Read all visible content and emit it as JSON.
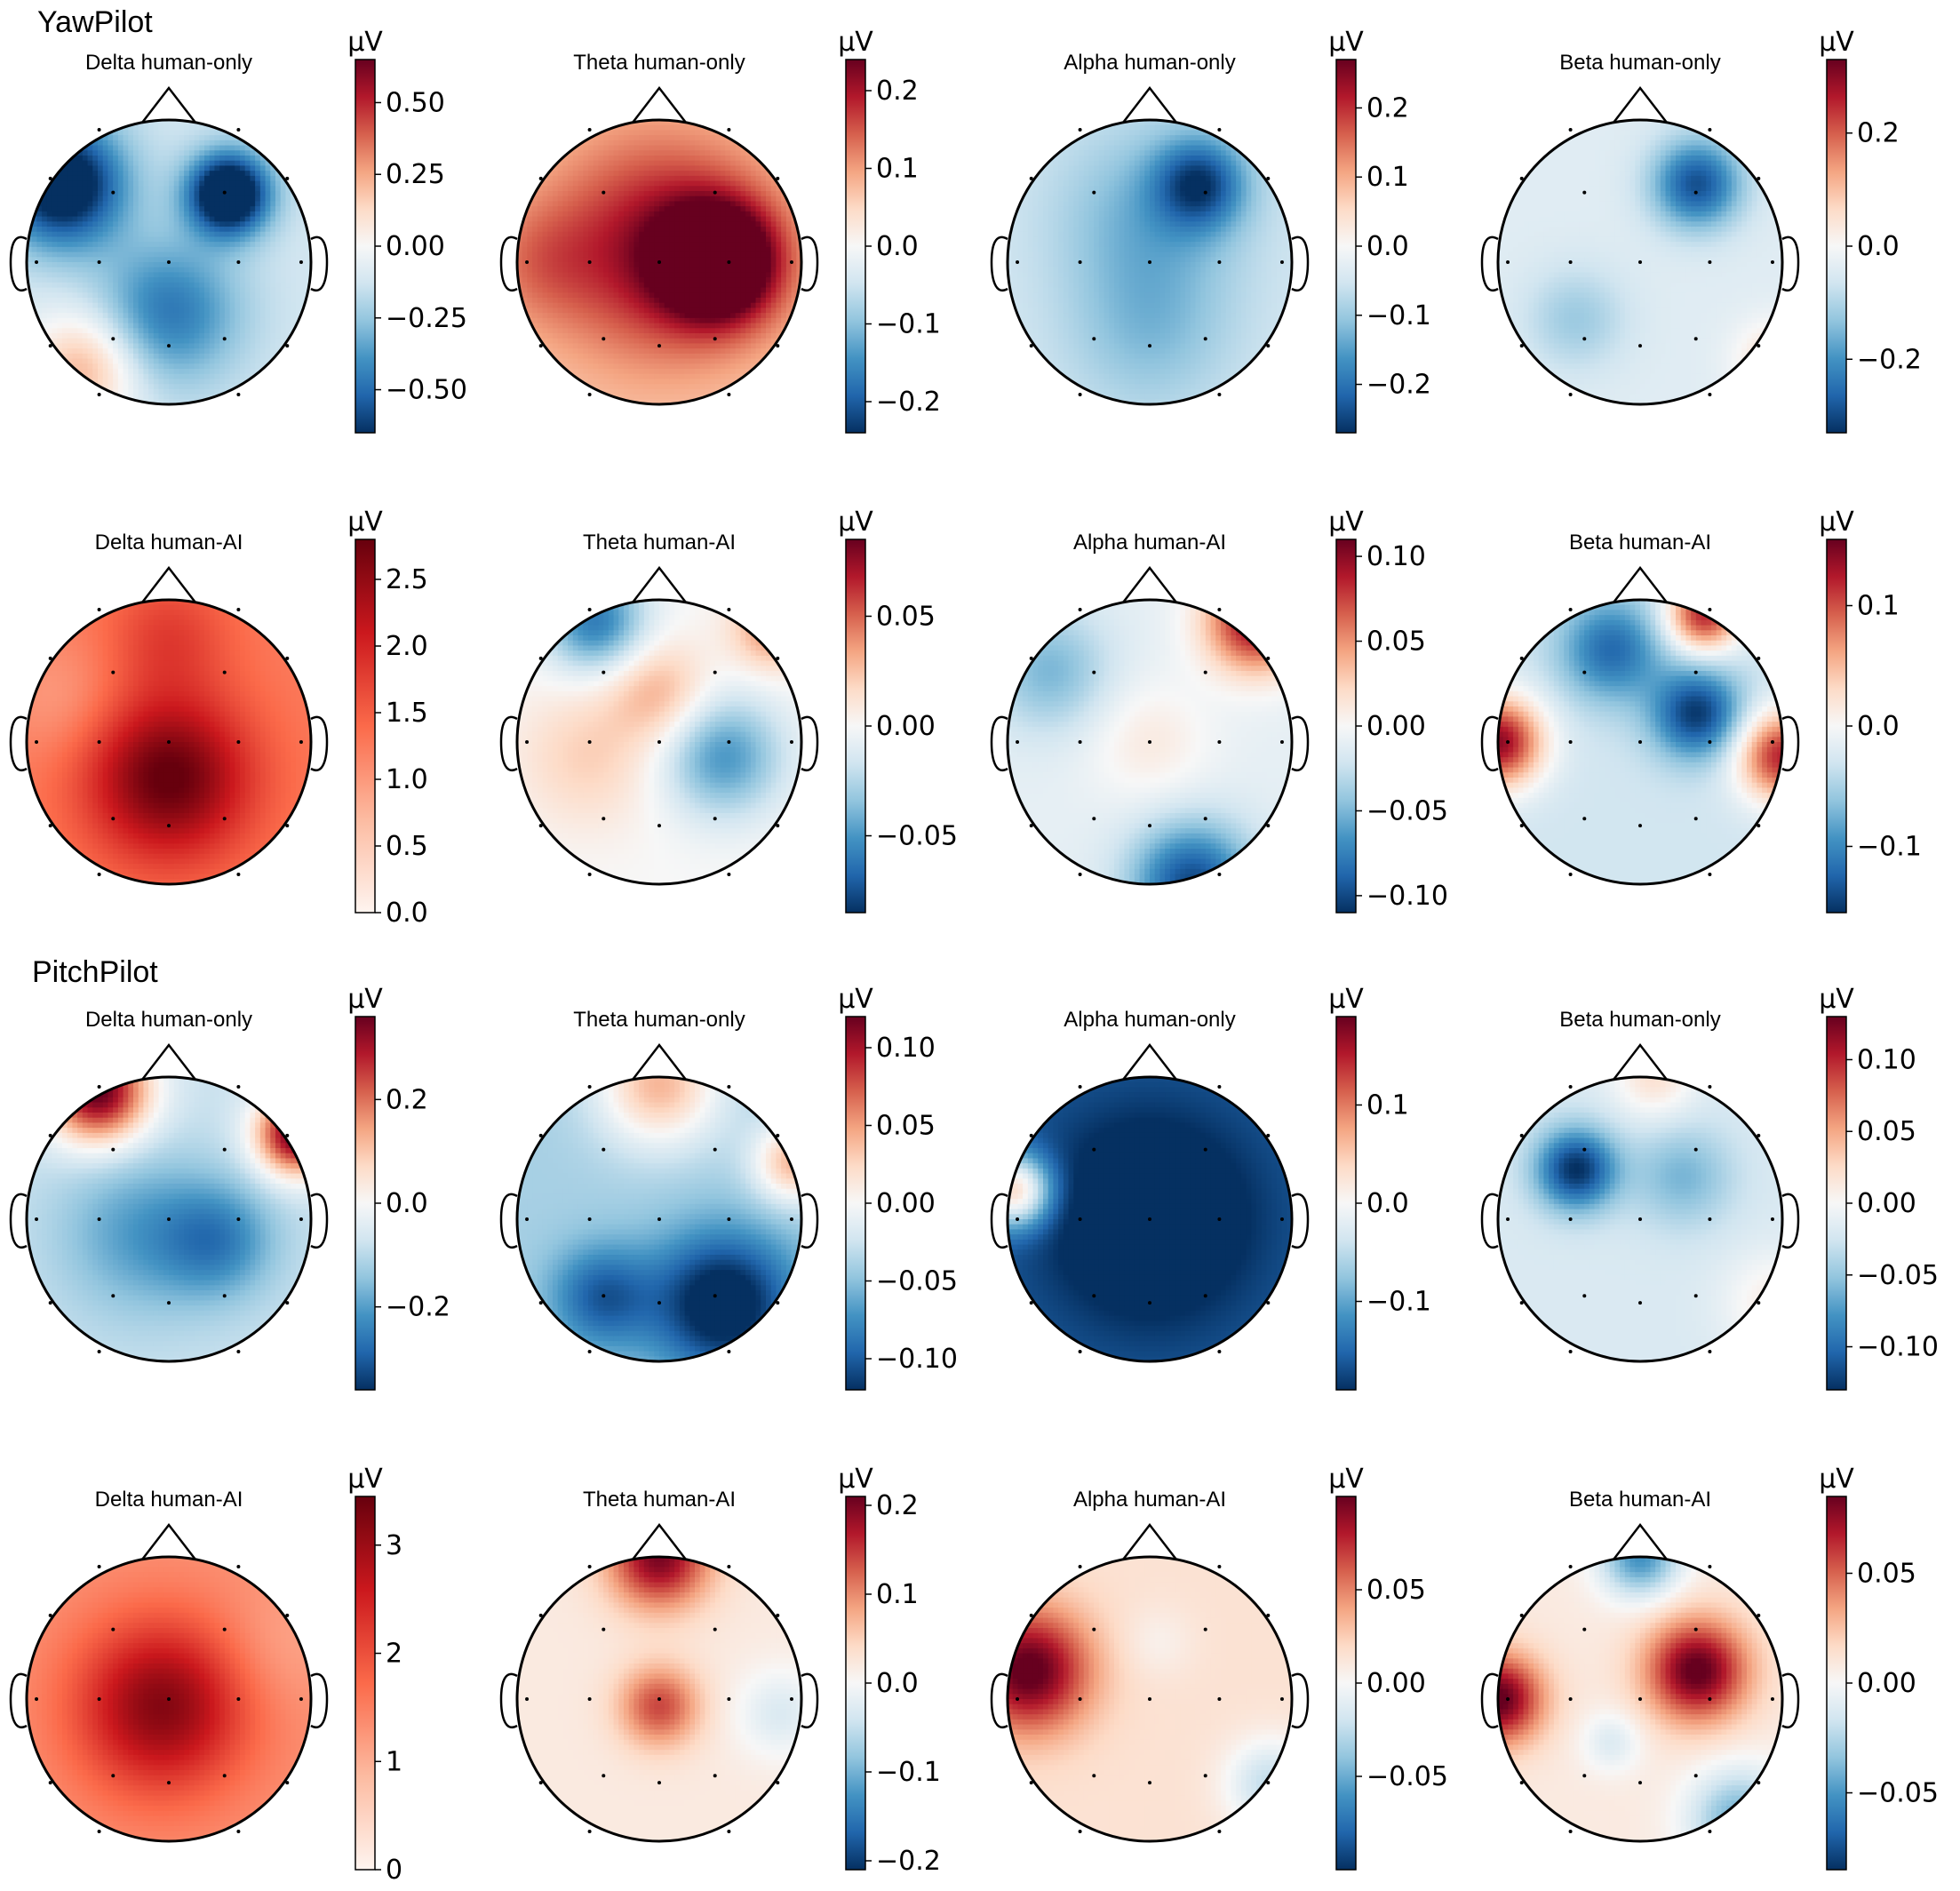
{
  "figure": {
    "sections": [
      {
        "title": "YawPilot"
      },
      {
        "title": "PitchPilot"
      }
    ]
  },
  "chart_data": [
    {
      "type": "heatmap",
      "section": "YawPilot",
      "title": "Delta human-only",
      "unit": "µV",
      "vlim": [
        -0.65,
        0.65
      ],
      "ticks": [
        0.5,
        0.25,
        0.0,
        -0.25,
        -0.5
      ],
      "tick_labels": [
        "0.50",
        "0.25",
        "0.00",
        "−0.25",
        "−0.50"
      ],
      "base": -0.12,
      "blobs": [
        [
          -0.75,
          -0.55,
          -0.7,
          0.3
        ],
        [
          0.42,
          -0.48,
          -0.8,
          0.2
        ],
        [
          0.0,
          0.35,
          -0.35,
          0.35
        ],
        [
          -0.6,
          0.75,
          0.35,
          0.28
        ]
      ]
    },
    {
      "type": "heatmap",
      "section": "YawPilot",
      "title": "Theta human-only",
      "unit": "µV",
      "vlim": [
        -0.24,
        0.24
      ],
      "ticks": [
        0.2,
        0.1,
        0.0,
        -0.1,
        -0.2
      ],
      "tick_labels": [
        "0.2",
        "0.1",
        "0.0",
        "−0.1",
        "−0.2"
      ],
      "base": 0.06,
      "blobs": [
        [
          0.0,
          -0.1,
          0.15,
          0.55
        ],
        [
          0.42,
          0.0,
          0.28,
          0.28
        ],
        [
          -0.85,
          0.0,
          0.05,
          0.3
        ]
      ]
    },
    {
      "type": "heatmap",
      "section": "YawPilot",
      "title": "Alpha human-only",
      "unit": "µV",
      "vlim": [
        -0.27,
        0.27
      ],
      "ticks": [
        0.2,
        0.1,
        0.0,
        -0.1,
        -0.2
      ],
      "tick_labels": [
        "0.2",
        "0.1",
        "0.0",
        "−0.1",
        "−0.2"
      ],
      "base": -0.05,
      "blobs": [
        [
          0.35,
          -0.55,
          -0.18,
          0.22
        ],
        [
          0.0,
          -0.3,
          -0.08,
          0.45
        ],
        [
          0.0,
          0.5,
          -0.06,
          0.4
        ]
      ]
    },
    {
      "type": "heatmap",
      "section": "YawPilot",
      "title": "Beta human-only",
      "unit": "µV",
      "vlim": [
        -0.33,
        0.33
      ],
      "ticks": [
        0.2,
        0.0,
        -0.2
      ],
      "tick_labels": [
        "0.2",
        "0.0",
        "−0.2"
      ],
      "base": -0.04,
      "blobs": [
        [
          0.4,
          -0.55,
          -0.25,
          0.22
        ],
        [
          -0.45,
          0.4,
          -0.08,
          0.25
        ],
        [
          0.95,
          0.7,
          0.1,
          0.2
        ]
      ]
    },
    {
      "type": "heatmap",
      "section": "YawPilot",
      "title": "Delta human-AI",
      "unit": "µV",
      "vlim": [
        0.0,
        2.8
      ],
      "ticks": [
        2.5,
        2.0,
        1.5,
        1.0,
        0.5,
        0.0
      ],
      "tick_labels": [
        "2.5",
        "2.0",
        "1.5",
        "1.0",
        "0.5",
        "0.0"
      ],
      "base": 1.25,
      "blobs": [
        [
          0.0,
          0.25,
          1.6,
          0.4
        ],
        [
          0.0,
          -0.75,
          0.5,
          0.3
        ],
        [
          -0.75,
          -0.3,
          -0.3,
          0.3
        ]
      ]
    },
    {
      "type": "heatmap",
      "section": "YawPilot",
      "title": "Theta human-AI",
      "unit": "µV",
      "vlim": [
        -0.085,
        0.085
      ],
      "ticks": [
        0.05,
        0.0,
        -0.05
      ],
      "tick_labels": [
        "0.05",
        "0.00",
        "−0.05"
      ],
      "base": 0.0,
      "blobs": [
        [
          -0.45,
          -0.85,
          -0.06,
          0.25
        ],
        [
          0.45,
          0.1,
          -0.05,
          0.3
        ],
        [
          0.0,
          -0.35,
          0.03,
          0.25
        ],
        [
          -0.5,
          0.1,
          0.02,
          0.35
        ],
        [
          0.8,
          -0.8,
          0.04,
          0.2
        ]
      ]
    },
    {
      "type": "heatmap",
      "section": "YawPilot",
      "title": "Alpha human-AI",
      "unit": "µV",
      "vlim": [
        -0.11,
        0.11
      ],
      "ticks": [
        0.1,
        0.05,
        0.0,
        -0.05,
        -0.1
      ],
      "tick_labels": [
        "0.10",
        "0.05",
        "0.00",
        "−0.05",
        "−0.10"
      ],
      "base": -0.01,
      "blobs": [
        [
          0.75,
          -0.85,
          0.11,
          0.25
        ],
        [
          0.3,
          1.0,
          -0.09,
          0.3
        ],
        [
          0.0,
          0.0,
          0.02,
          0.3
        ],
        [
          -0.7,
          -0.5,
          -0.04,
          0.3
        ]
      ]
    },
    {
      "type": "heatmap",
      "section": "YawPilot",
      "title": "Beta human-AI",
      "unit": "µV",
      "vlim": [
        -0.155,
        0.155
      ],
      "ticks": [
        0.1,
        0.0,
        -0.1
      ],
      "tick_labels": [
        "0.1",
        "0.0",
        "−0.1"
      ],
      "base": -0.03,
      "blobs": [
        [
          -1.0,
          0.0,
          0.17,
          0.22
        ],
        [
          1.0,
          0.1,
          0.15,
          0.22
        ],
        [
          0.45,
          -0.9,
          0.15,
          0.18
        ],
        [
          0.4,
          -0.2,
          -0.12,
          0.22
        ],
        [
          -0.2,
          -0.65,
          -0.09,
          0.25
        ]
      ]
    },
    {
      "type": "heatmap",
      "section": "PitchPilot",
      "title": "Delta human-only",
      "unit": "µV",
      "vlim": [
        -0.36,
        0.36
      ],
      "ticks": [
        0.2,
        0.0,
        -0.2
      ],
      "tick_labels": [
        "0.2",
        "0.0",
        "−0.2"
      ],
      "base": -0.08,
      "blobs": [
        [
          -0.5,
          -0.9,
          0.45,
          0.25
        ],
        [
          0.9,
          -0.6,
          0.45,
          0.2
        ],
        [
          0.35,
          0.15,
          -0.15,
          0.28
        ],
        [
          -0.2,
          0.1,
          -0.12,
          0.4
        ]
      ]
    },
    {
      "type": "heatmap",
      "section": "PitchPilot",
      "title": "Theta human-only",
      "unit": "µV",
      "vlim": [
        -0.12,
        0.12
      ],
      "ticks": [
        0.1,
        0.05,
        0.0,
        -0.05,
        -0.1
      ],
      "tick_labels": [
        "0.10",
        "0.05",
        "0.00",
        "−0.05",
        "−0.10"
      ],
      "base": -0.04,
      "blobs": [
        [
          0.0,
          -0.95,
          0.08,
          0.3
        ],
        [
          0.95,
          -0.4,
          0.08,
          0.2
        ],
        [
          0.45,
          0.6,
          -0.1,
          0.35
        ],
        [
          -0.4,
          0.55,
          -0.06,
          0.25
        ]
      ]
    },
    {
      "type": "heatmap",
      "section": "PitchPilot",
      "title": "Alpha human-only",
      "unit": "µV",
      "vlim": [
        -0.19,
        0.19
      ],
      "ticks": [
        0.1,
        0.0,
        -0.1
      ],
      "tick_labels": [
        "0.1",
        "0.0",
        "−0.1"
      ],
      "base": -0.16,
      "blobs": [
        [
          -0.95,
          -0.2,
          0.2,
          0.18
        ],
        [
          0.0,
          0.0,
          -0.08,
          0.5
        ]
      ]
    },
    {
      "type": "heatmap",
      "section": "PitchPilot",
      "title": "Beta human-only",
      "unit": "µV",
      "vlim": [
        -0.13,
        0.13
      ],
      "ticks": [
        0.1,
        0.05,
        0.0,
        -0.05,
        -0.1
      ],
      "tick_labels": [
        "0.10",
        "0.05",
        "0.00",
        "−0.05",
        "−0.10"
      ],
      "base": -0.02,
      "blobs": [
        [
          -0.45,
          -0.35,
          -0.11,
          0.2
        ],
        [
          0.3,
          -0.3,
          -0.04,
          0.25
        ],
        [
          0.1,
          -1.0,
          0.04,
          0.2
        ],
        [
          0.95,
          0.6,
          0.03,
          0.25
        ]
      ]
    },
    {
      "type": "heatmap",
      "section": "PitchPilot",
      "title": "Delta human-AI",
      "unit": "µV",
      "vlim": [
        0.0,
        3.45
      ],
      "ticks": [
        3,
        2,
        1,
        0
      ],
      "tick_labels": [
        "3",
        "2",
        "1",
        "0"
      ],
      "base": 1.3,
      "blobs": [
        [
          -0.05,
          0.05,
          1.9,
          0.42
        ],
        [
          0.75,
          -0.35,
          -0.25,
          0.3
        ]
      ]
    },
    {
      "type": "heatmap",
      "section": "PitchPilot",
      "title": "Theta human-AI",
      "unit": "µV",
      "vlim": [
        -0.21,
        0.21
      ],
      "ticks": [
        0.2,
        0.1,
        0.0,
        -0.1,
        -0.2
      ],
      "tick_labels": [
        "0.2",
        "0.1",
        "0.0",
        "−0.1",
        "−0.2"
      ],
      "base": 0.02,
      "blobs": [
        [
          0.0,
          -1.0,
          0.18,
          0.25
        ],
        [
          0.0,
          0.05,
          0.12,
          0.2
        ],
        [
          0.85,
          0.1,
          -0.05,
          0.22
        ]
      ]
    },
    {
      "type": "heatmap",
      "section": "PitchPilot",
      "title": "Alpha human-AI",
      "unit": "µV",
      "vlim": [
        -0.1,
        0.1
      ],
      "ticks": [
        0.05,
        0.0,
        -0.05
      ],
      "tick_labels": [
        "0.05",
        "0.00",
        "−0.05"
      ],
      "base": 0.015,
      "blobs": [
        [
          -0.85,
          -0.2,
          0.09,
          0.3
        ],
        [
          0.05,
          -0.4,
          -0.01,
          0.18
        ],
        [
          0.85,
          0.6,
          -0.04,
          0.22
        ]
      ]
    },
    {
      "type": "heatmap",
      "section": "PitchPilot",
      "title": "Beta human-AI",
      "unit": "µV",
      "vlim": [
        -0.085,
        0.085
      ],
      "ticks": [
        0.05,
        0.0,
        -0.05
      ],
      "tick_labels": [
        "0.05",
        "0.00",
        "−0.05"
      ],
      "base": 0.008,
      "blobs": [
        [
          0.4,
          -0.2,
          0.08,
          0.25
        ],
        [
          -1.0,
          0.0,
          0.08,
          0.22
        ],
        [
          0.0,
          -1.0,
          -0.06,
          0.2
        ],
        [
          0.7,
          0.85,
          -0.05,
          0.25
        ],
        [
          -0.2,
          0.3,
          -0.02,
          0.15
        ]
      ]
    }
  ]
}
